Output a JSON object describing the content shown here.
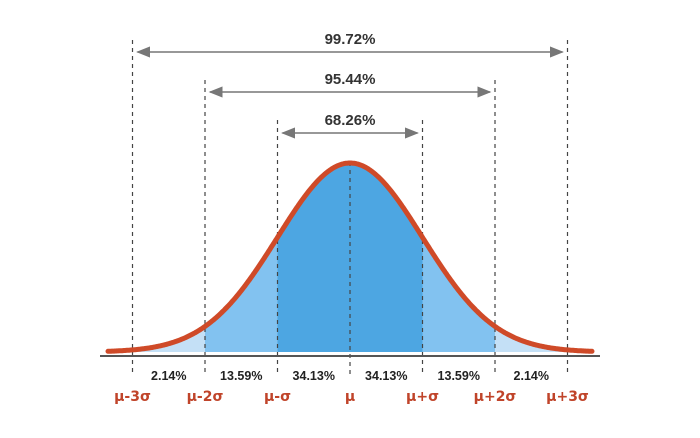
{
  "colors": {
    "curve": "#cf4a28",
    "band_center": "#4da6e2",
    "band_mid": "#82c2f0",
    "band_tail": "#c4e0f6",
    "guide_line": "#444444",
    "arrow": "#777777",
    "axis": "#555555",
    "sigma_label": "#c0442a"
  },
  "ranges": [
    {
      "label": "99.72%",
      "span": 3
    },
    {
      "label": "95.44%",
      "span": 2
    },
    {
      "label": "68.26%",
      "span": 1
    }
  ],
  "bands": [
    "2.14%",
    "13.59%",
    "34.13%",
    "34.13%",
    "13.59%",
    "2.14%"
  ],
  "sigma_labels": [
    "μ-3σ",
    "μ-2σ",
    "μ-σ",
    "μ",
    "μ+σ",
    "μ+2σ",
    "μ+3σ"
  ]
}
